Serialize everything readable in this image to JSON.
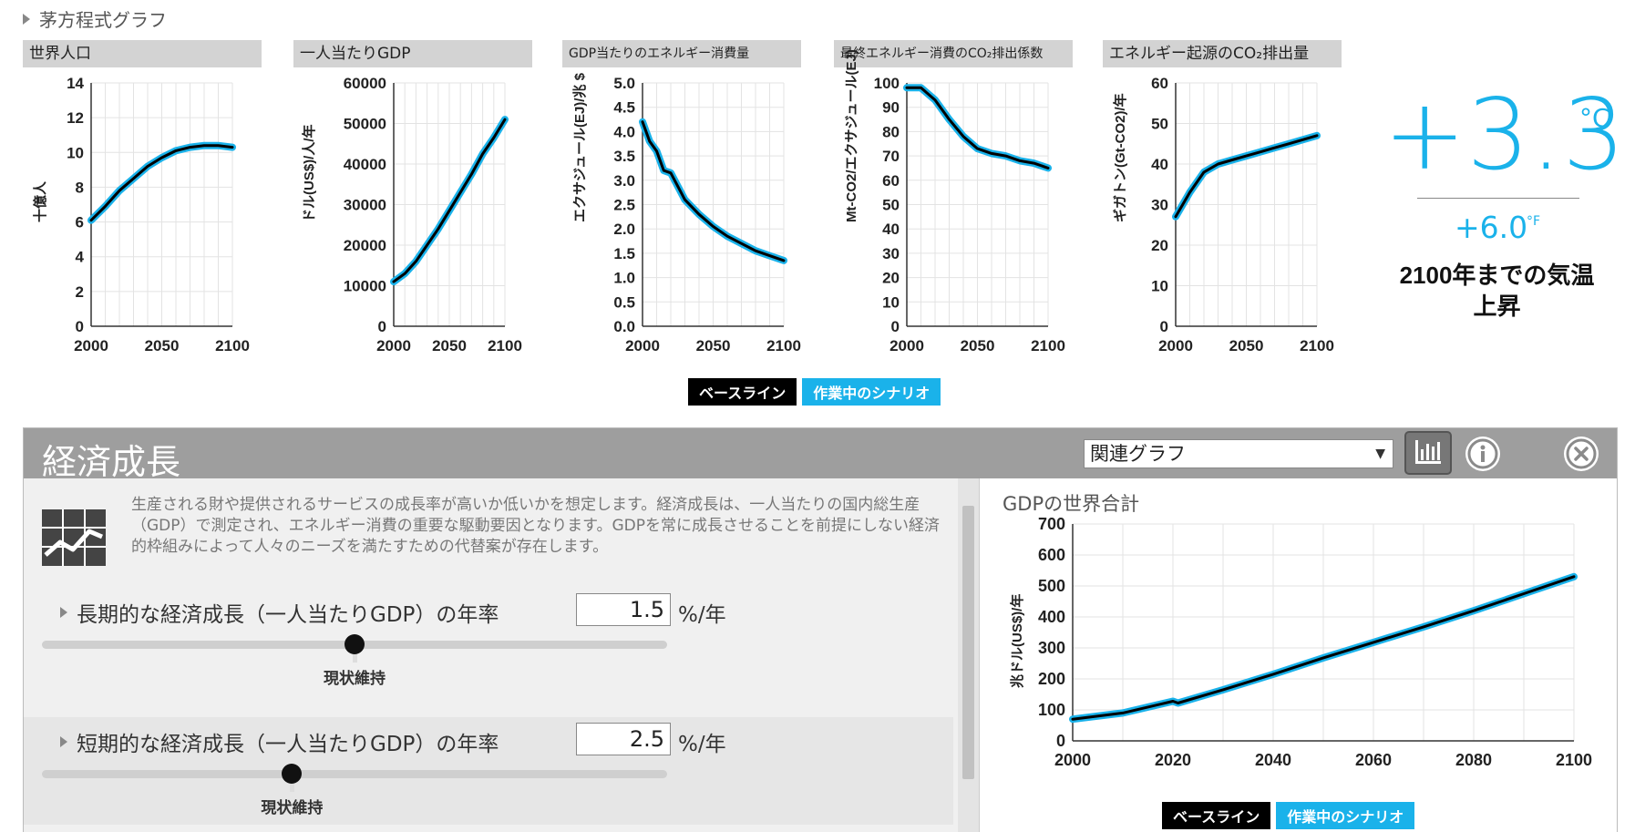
{
  "header": {
    "title": "茅方程式グラフ"
  },
  "mini_charts": [
    {
      "title": "世界人口",
      "ylabel": "十億人",
      "yticks": [
        "14",
        "12",
        "10",
        "8",
        "6",
        "4",
        "2",
        "0"
      ],
      "xticks": [
        "2000",
        "2050",
        "2100"
      ]
    },
    {
      "title": "一人当たりGDP",
      "ylabel": "ドル(US$)/人/年",
      "yticks": [
        "60000",
        "50000",
        "40000",
        "30000",
        "20000",
        "10000",
        "0"
      ],
      "xticks": [
        "2000",
        "2050",
        "2100"
      ]
    },
    {
      "title": "GDP当たりのエネルギー消費量",
      "ylabel": "エクサジュール(EJ)/兆 $",
      "yticks": [
        "5.0",
        "4.5",
        "4.0",
        "3.5",
        "3.0",
        "2.5",
        "2.0",
        "1.5",
        "1.0",
        "0.5",
        "0.0"
      ],
      "xticks": [
        "2000",
        "2050",
        "2100"
      ]
    },
    {
      "title": "最終エネルギー消費のCO₂排出係数",
      "ylabel": "Mt-CO2/エクサジュール(EJ)",
      "yticks": [
        "100",
        "90",
        "80",
        "70",
        "60",
        "50",
        "40",
        "30",
        "20",
        "10",
        "0"
      ],
      "xticks": [
        "2000",
        "2050",
        "2100"
      ]
    },
    {
      "title": "エネルギー起源のCO₂排出量",
      "ylabel": "ギガトン(Gt-CO2)/年",
      "yticks": [
        "60",
        "50",
        "40",
        "30",
        "20",
        "10",
        "0"
      ],
      "xticks": [
        "2000",
        "2050",
        "2100"
      ]
    }
  ],
  "chart_data": [
    {
      "type": "line",
      "title": "世界人口",
      "ylabel": "十億人",
      "ylim": [
        0,
        14
      ],
      "xlim": [
        2000,
        2100
      ],
      "series": [
        {
          "name": "ベースライン",
          "x": [
            2000,
            2010,
            2020,
            2030,
            2040,
            2050,
            2060,
            2070,
            2080,
            2090,
            2100
          ],
          "values": [
            6.1,
            6.9,
            7.8,
            8.5,
            9.2,
            9.7,
            10.1,
            10.3,
            10.4,
            10.4,
            10.3
          ]
        }
      ]
    },
    {
      "type": "line",
      "title": "一人当たりGDP",
      "ylabel": "ドル(US$)/人/年",
      "ylim": [
        0,
        60000
      ],
      "xlim": [
        2000,
        2100
      ],
      "series": [
        {
          "name": "ベースライン",
          "x": [
            2000,
            2010,
            2020,
            2030,
            2040,
            2050,
            2060,
            2070,
            2080,
            2090,
            2100
          ],
          "values": [
            11000,
            13000,
            16000,
            20000,
            24000,
            28500,
            33000,
            37500,
            42500,
            46500,
            51000
          ]
        }
      ]
    },
    {
      "type": "line",
      "title": "GDP当たりのエネルギー消費量",
      "ylabel": "エクサジュール(EJ)/兆 $",
      "ylim": [
        0,
        5
      ],
      "xlim": [
        2000,
        2100
      ],
      "series": [
        {
          "name": "ベースライン",
          "x": [
            2000,
            2005,
            2010,
            2015,
            2020,
            2030,
            2040,
            2050,
            2060,
            2070,
            2080,
            2090,
            2100
          ],
          "values": [
            4.2,
            3.8,
            3.6,
            3.2,
            3.15,
            2.6,
            2.3,
            2.05,
            1.85,
            1.7,
            1.55,
            1.45,
            1.35
          ]
        }
      ]
    },
    {
      "type": "line",
      "title": "最終エネルギー消費のCO₂排出係数",
      "ylabel": "Mt-CO2/エクサジュール(EJ)",
      "ylim": [
        0,
        100
      ],
      "xlim": [
        2000,
        2100
      ],
      "series": [
        {
          "name": "ベースライン",
          "x": [
            2000,
            2010,
            2020,
            2030,
            2040,
            2050,
            2060,
            2070,
            2080,
            2090,
            2100
          ],
          "values": [
            98,
            98,
            93,
            85,
            78,
            73,
            71,
            70,
            68,
            67,
            65
          ]
        }
      ]
    },
    {
      "type": "line",
      "title": "エネルギー起源のCO₂排出量",
      "ylabel": "ギガトン(Gt-CO2)/年",
      "ylim": [
        0,
        60
      ],
      "xlim": [
        2000,
        2100
      ],
      "series": [
        {
          "name": "ベースライン",
          "x": [
            2000,
            2010,
            2020,
            2030,
            2040,
            2050,
            2060,
            2070,
            2080,
            2090,
            2100
          ],
          "values": [
            27,
            33,
            38,
            40,
            41,
            42,
            43,
            44,
            45,
            46,
            47
          ]
        }
      ]
    },
    {
      "type": "line",
      "title": "GDPの世界合計",
      "ylabel": "兆ドル(US$)/年",
      "ylim": [
        0,
        700
      ],
      "xlim": [
        2000,
        2100
      ],
      "series": [
        {
          "name": "ベースライン",
          "x": [
            2000,
            2010,
            2020,
            2021,
            2030,
            2040,
            2050,
            2060,
            2070,
            2080,
            2090,
            2100
          ],
          "values": [
            70,
            90,
            128,
            122,
            165,
            215,
            268,
            318,
            368,
            420,
            475,
            530
          ]
        }
      ]
    }
  ],
  "legend": {
    "baseline": "ベースライン",
    "scenario": "作業中のシナリオ"
  },
  "temperature": {
    "celsius": "+3.3",
    "celsius_unit": "°C",
    "fahrenheit": "+6.0",
    "fahrenheit_unit": "°F",
    "label_line1": "2100年までの気温",
    "label_line2": "上昇"
  },
  "panel": {
    "title": "経済成長",
    "related_select": "関連グラフ",
    "description": "生産される財や提供されるサービスの成長率が高いか低いかを想定します。経済成長は、一人当たりの国内総生産（GDP）で測定され、エネルギー消費の重要な駆動要因となります。GDPを常に成長させることを前提にしない経済的枠組みによって人々のニーズを満たすための代替案が存在します。",
    "sliders": [
      {
        "label": "長期的な経済成長（一人当たりGDP）の年率",
        "value": "1.5",
        "unit": "%/年",
        "status": "現状維持",
        "fraction": 0.5
      },
      {
        "label": "短期的な経済成長（一人当たりGDP）の年率",
        "value": "2.5",
        "unit": "%/年",
        "status": "現状維持",
        "fraction": 0.4
      }
    ],
    "gdp_chart": {
      "title": "GDPの世界合計",
      "ylabel": "兆ドル(US$)/年",
      "yticks": [
        "700",
        "600",
        "500",
        "400",
        "300",
        "200",
        "100",
        "0"
      ],
      "xticks": [
        "2000",
        "2020",
        "2040",
        "2060",
        "2080",
        "2100"
      ]
    }
  },
  "colors": {
    "scenario": "#1ab2ea",
    "baseline": "#000000",
    "panel_header": "#9e9e9e"
  }
}
